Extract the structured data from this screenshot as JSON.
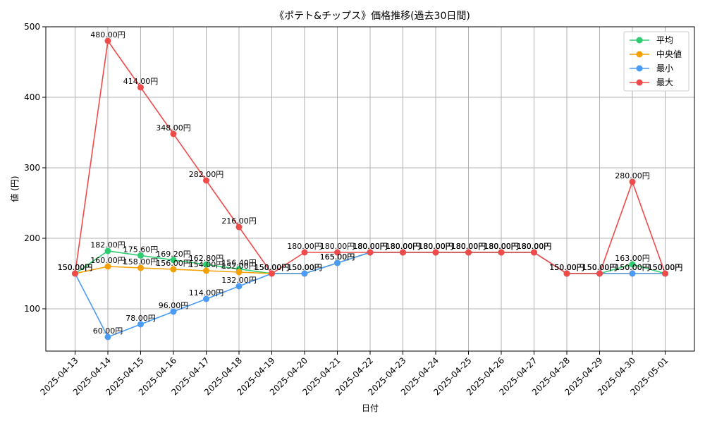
{
  "chart_data": {
    "type": "line",
    "title": "《ポテト&チップス》価格推移(過去30日間)",
    "xlabel": "日付",
    "ylabel": "値 (円)",
    "ylim": [
      40,
      500
    ],
    "yticks": [
      100,
      200,
      300,
      400,
      500
    ],
    "grid": true,
    "legend_position": "top-right",
    "categories": [
      "2025-04-13",
      "2025-04-14",
      "2025-04-15",
      "2025-04-16",
      "2025-04-17",
      "2025-04-18",
      "2025-04-19",
      "2025-04-20",
      "2025-04-21",
      "2025-04-22",
      "2025-04-23",
      "2025-04-24",
      "2025-04-25",
      "2025-04-26",
      "2025-04-27",
      "2025-04-28",
      "2025-04-29",
      "2025-04-30",
      "2025-05-01"
    ],
    "series": [
      {
        "name": "平均",
        "color": "#2ecc71",
        "values": [
          150,
          182,
          175.6,
          169.2,
          162.8,
          156.4,
          150,
          150,
          165,
          180,
          180,
          180,
          180,
          180,
          180,
          150,
          150,
          163,
          150
        ],
        "labels": [
          "150.00円",
          "182.00円",
          "175.60円",
          "169.20円",
          "162.80円",
          "156.40円",
          "150.00円",
          "150.00円",
          "165.00円",
          "180.00円",
          "180.00円",
          "180.00円",
          "180.00円",
          "180.00円",
          "180.00円",
          "150.00円",
          "150.00円",
          "163.00円",
          "150.00円"
        ]
      },
      {
        "name": "中央値",
        "color": "#f5a000",
        "values": [
          150,
          160,
          158,
          156,
          154,
          152,
          150,
          150,
          165,
          180,
          180,
          180,
          180,
          180,
          180,
          150,
          150,
          150,
          150
        ],
        "labels": [
          "150.00円",
          "160.00円",
          "158.00円",
          "156.00円",
          "154.00円",
          "152.00円",
          "150.00円",
          "150.00円",
          "165.00円",
          "180.00円",
          "180.00円",
          "180.00円",
          "180.00円",
          "180.00円",
          "180.00円",
          "150.00円",
          "150.00円",
          "150.00円",
          "150.00円"
        ]
      },
      {
        "name": "最小",
        "color": "#4a9bf5",
        "values": [
          150,
          60,
          78,
          96,
          114,
          132,
          150,
          150,
          165,
          180,
          180,
          180,
          180,
          180,
          180,
          150,
          150,
          150,
          150
        ],
        "labels": [
          "150.00円",
          "60.00円",
          "78.00円",
          "96.00円",
          "114.00円",
          "132.00円",
          "150.00円",
          "150.00円",
          "165.00円",
          "180.00円",
          "180.00円",
          "180.00円",
          "180.00円",
          "180.00円",
          "180.00円",
          "150.00円",
          "150.00円",
          "150.00円",
          "150.00円"
        ]
      },
      {
        "name": "最大",
        "color": "#ef4b4b",
        "values": [
          150,
          480,
          414,
          348,
          282,
          216,
          150,
          180,
          180,
          180,
          180,
          180,
          180,
          180,
          180,
          150,
          150,
          280,
          150
        ],
        "labels": [
          "150.00円",
          "480.00円",
          "414.00円",
          "348.00円",
          "282.00円",
          "216.00円",
          "150.00円",
          "180.00円",
          "180.00円",
          "180.00円",
          "180.00円",
          "180.00円",
          "180.00円",
          "180.00円",
          "180.00円",
          "150.00円",
          "150.00円",
          "280.00円",
          "150.00円"
        ]
      }
    ]
  }
}
